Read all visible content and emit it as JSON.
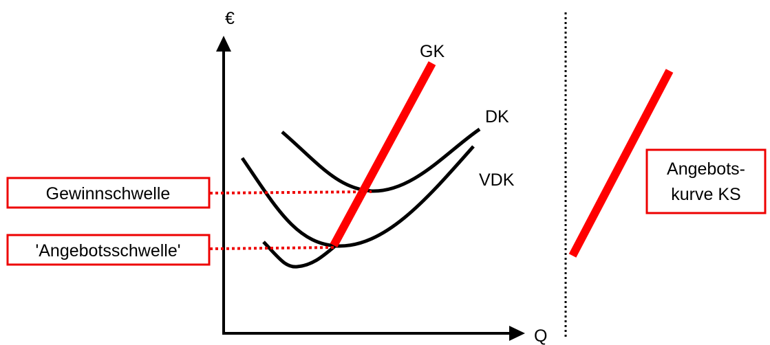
{
  "axes": {
    "y_label": "€",
    "x_label": "Q"
  },
  "curves": {
    "gk": "GK",
    "dk": "DK",
    "vdk": "VDK"
  },
  "boxes": {
    "gewinnschwelle": "Gewinnschwelle",
    "angebotsschwelle": "'Angebotsschwelle'",
    "angebotskurve": [
      "Angebots-",
      "kurve KS"
    ]
  }
}
